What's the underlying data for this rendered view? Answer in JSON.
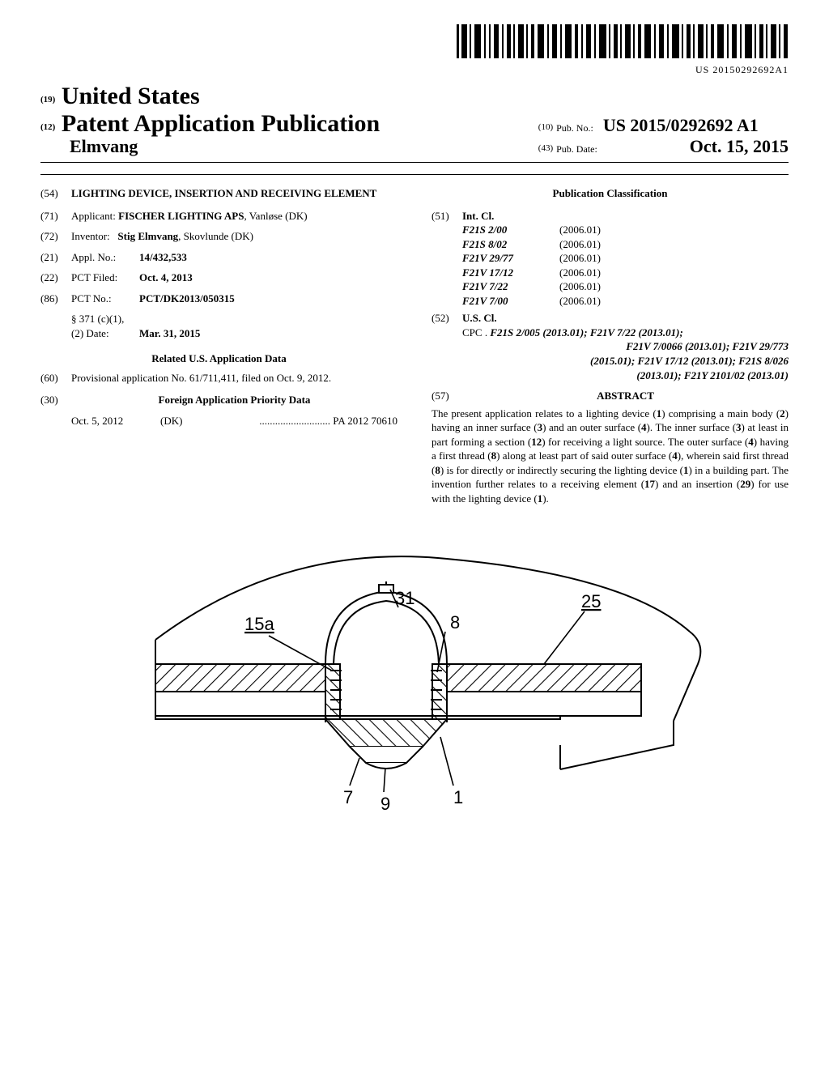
{
  "barcode": {
    "text": "US 20150292692A1"
  },
  "header": {
    "us_prefix": "(19)",
    "us": "United States",
    "pap_prefix": "(12)",
    "pap": "Patent Application Publication",
    "inventor_line": "Elmvang",
    "pubno_prefix": "(10)",
    "pubno_lbl": "Pub. No.:",
    "pubno_val": "US 2015/0292692 A1",
    "pubdate_prefix": "(43)",
    "pubdate_lbl": "Pub. Date:",
    "pubdate_val": "Oct. 15, 2015"
  },
  "left": {
    "title_code": "(54)",
    "title": "LIGHTING DEVICE, INSERTION AND RECEIVING ELEMENT",
    "applicant_code": "(71)",
    "applicant_lbl": "Applicant:",
    "applicant_val": "FISCHER LIGHTING APS",
    "applicant_loc": ", Vanløse (DK)",
    "inventor_code": "(72)",
    "inventor_lbl": "Inventor:",
    "inventor_val": "Stig Elmvang",
    "inventor_loc": ", Skovlunde (DK)",
    "applno_code": "(21)",
    "applno_lbl": "Appl. No.:",
    "applno_val": "14/432,533",
    "pctfiled_code": "(22)",
    "pctfiled_lbl": "PCT Filed:",
    "pctfiled_val": "Oct. 4, 2013",
    "pctno_code": "(86)",
    "pctno_lbl": "PCT No.:",
    "pctno_val": "PCT/DK2013/050315",
    "s371_line1": "§ 371 (c)(1),",
    "s371_line2_lbl": "(2) Date:",
    "s371_line2_val": "Mar. 31, 2015",
    "related_title": "Related U.S. Application Data",
    "provisional_code": "(60)",
    "provisional_text": "Provisional application No. 61/711,411, filed on Oct. 9, 2012.",
    "foreign_code": "(30)",
    "foreign_title": "Foreign Application Priority Data",
    "foreign_date": "Oct. 5, 2012",
    "foreign_cc": "(DK)",
    "foreign_dots": "...........................",
    "foreign_num": "PA 2012 70610"
  },
  "right": {
    "pubclass_title": "Publication Classification",
    "intcl_code": "(51)",
    "intcl_lbl": "Int. Cl.",
    "intcls": [
      {
        "cl": "F21S 2/00",
        "ver": "(2006.01)"
      },
      {
        "cl": "F21S 8/02",
        "ver": "(2006.01)"
      },
      {
        "cl": "F21V 29/77",
        "ver": "(2006.01)"
      },
      {
        "cl": "F21V 17/12",
        "ver": "(2006.01)"
      },
      {
        "cl": "F21V 7/22",
        "ver": "(2006.01)"
      },
      {
        "cl": "F21V 7/00",
        "ver": "(2006.01)"
      }
    ],
    "uscl_code": "(52)",
    "uscl_lbl": "U.S. Cl.",
    "cpc_lbl": "CPC .",
    "cpc_line1": "F21S 2/005 (2013.01); F21V 7/22 (2013.01);",
    "cpc_line2": "F21V 7/0066 (2013.01); F21V 29/773",
    "cpc_line3": "(2015.01); F21V 17/12 (2013.01); F21S 8/026",
    "cpc_line4": "(2013.01); F21Y 2101/02 (2013.01)",
    "abs_code": "(57)",
    "abs_title": "ABSTRACT",
    "abs_text": "The present application relates to a lighting device (1) comprising a main body (2) having an inner surface (3) and an outer surface (4). The inner surface (3) at least in part forming a section (12) for receiving a light source. The outer surface (4) having a first thread (8) along at least part of said outer surface (4), wherein said first thread (8) is for directly or indirectly securing the lighting device (1) in a building part. The invention further relates to a receiving element (17) and an insertion (29) for use with the lighting device (1)."
  },
  "figure": {
    "labels": {
      "l15a": "15a",
      "l31": "31",
      "l8": "8",
      "l25": "25",
      "l9": "9",
      "l7": "7",
      "l1": "1"
    }
  }
}
